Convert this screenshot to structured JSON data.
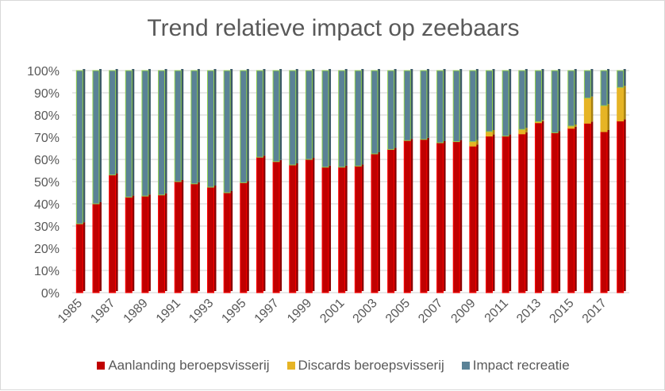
{
  "chart_data": {
    "type": "bar",
    "stacked": "percent",
    "title": "Trend relatieve impact op zeebaars",
    "xlabel": "",
    "ylabel": "",
    "ylim": [
      0,
      100
    ],
    "yticks": [
      "0%",
      "10%",
      "20%",
      "30%",
      "40%",
      "50%",
      "60%",
      "70%",
      "80%",
      "90%",
      "100%"
    ],
    "categories": [
      1985,
      1986,
      1987,
      1988,
      1989,
      1990,
      1991,
      1992,
      1993,
      1994,
      1995,
      1996,
      1997,
      1998,
      1999,
      2000,
      2001,
      2002,
      2003,
      2004,
      2005,
      2006,
      2007,
      2008,
      2009,
      2010,
      2011,
      2012,
      2013,
      2014,
      2015,
      2016,
      2017,
      2018
    ],
    "xtick_labels": [
      "1985",
      "1987",
      "1989",
      "1991",
      "1993",
      "1995",
      "1997",
      "1999",
      "2001",
      "2003",
      "2005",
      "2007",
      "2009",
      "2011",
      "2013",
      "2015",
      "2017"
    ],
    "series": [
      {
        "name": "Aanlanding beroepsvisserij",
        "color": "#c00000",
        "values": [
          31,
          40,
          53,
          43,
          43.5,
          44,
          50,
          49,
          47.5,
          45,
          49.5,
          61,
          59,
          57.5,
          60,
          56.5,
          56.5,
          57,
          62.5,
          64.5,
          68.5,
          69,
          67.5,
          68,
          66,
          70.5,
          70.5,
          71.5,
          76.5,
          72,
          74,
          76.3,
          72.5,
          77.3
        ]
      },
      {
        "name": "Discards beroepsvisserij",
        "color": "#e6b425",
        "values": [
          0,
          0,
          0,
          0,
          0,
          0,
          0,
          0,
          0,
          0,
          0,
          0,
          0,
          0,
          0,
          0,
          0,
          0,
          0,
          0,
          0,
          0,
          0,
          0,
          2,
          2,
          0,
          2,
          0.5,
          0,
          1,
          11.3,
          11.7,
          15.1
        ]
      },
      {
        "name": "Impact recreatie",
        "color": "#5a8296",
        "values": [
          69,
          60,
          47,
          57,
          56.5,
          56,
          50,
          51,
          52.5,
          55,
          50.5,
          39,
          41,
          42.5,
          40,
          43.5,
          43.5,
          43,
          37.5,
          35.5,
          31.5,
          31,
          32.5,
          32,
          32,
          27.5,
          29.5,
          26.5,
          23,
          28,
          25,
          12.4,
          15.8,
          7.6
        ]
      }
    ],
    "legend_position": "bottom",
    "grid": true
  }
}
